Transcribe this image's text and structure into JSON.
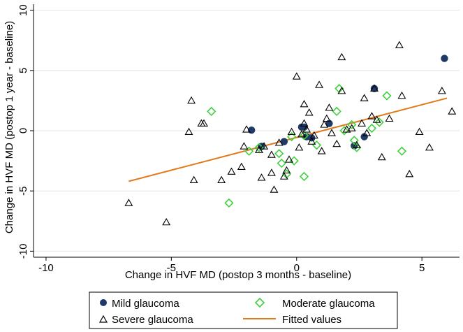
{
  "chart_data": {
    "type": "scatter",
    "xlabel": "Change in HVF MD (postop 3 months - baseline)",
    "ylabel": "Change in HVF MD (postop 1 year - baseline)",
    "xlim": [
      -10.5,
      6.5
    ],
    "ylim": [
      -10.5,
      10.5
    ],
    "xticks": [
      -10,
      -5,
      0,
      5
    ],
    "xtick_labels": [
      "-10",
      "-5",
      "0",
      "5"
    ],
    "yticks": [
      -10,
      -5,
      0,
      5,
      10
    ],
    "ytick_labels": [
      "-10",
      "-5",
      "0",
      "5",
      "10"
    ],
    "grid": "horizontal",
    "legend_placement": "bottom",
    "series": [
      {
        "name": "Mild glaucoma",
        "marker": "filled-circle",
        "color": "#1f3a66",
        "points": [
          [
            -1.8,
            0.05
          ],
          [
            -1.4,
            -1.3
          ],
          [
            -0.5,
            -0.9
          ],
          [
            0.2,
            0.3
          ],
          [
            0.3,
            0.3
          ],
          [
            0.4,
            -0.5
          ],
          [
            0.6,
            -0.6
          ],
          [
            1.3,
            0.6
          ],
          [
            2.3,
            -1.25
          ],
          [
            2.7,
            -0.5
          ],
          [
            3.1,
            3.5
          ],
          [
            5.9,
            6.0
          ]
        ]
      },
      {
        "name": "Moderate glaucoma",
        "marker": "hollow-diamond",
        "color": "#40d040",
        "points": [
          [
            -3.4,
            1.6
          ],
          [
            -2.7,
            -6.0
          ],
          [
            -1.9,
            -1.7
          ],
          [
            -1.5,
            -1.4
          ],
          [
            -0.7,
            -1.9
          ],
          [
            -0.6,
            -2.7
          ],
          [
            -0.4,
            -3.6
          ],
          [
            0.3,
            -3.8
          ],
          [
            -0.2,
            -0.5
          ],
          [
            -0.1,
            -2.5
          ],
          [
            0.3,
            -0.4
          ],
          [
            0.8,
            -1.2
          ],
          [
            1.6,
            1.6
          ],
          [
            1.7,
            3.5
          ],
          [
            1.9,
            0.0
          ],
          [
            2.2,
            0.5
          ],
          [
            2.3,
            -0.8
          ],
          [
            2.4,
            -1.4
          ],
          [
            3.0,
            0.2
          ],
          [
            3.3,
            0.7
          ],
          [
            3.6,
            2.9
          ],
          [
            4.2,
            -1.7
          ]
        ]
      },
      {
        "name": "Severe glaucoma",
        "marker": "hollow-triangle",
        "color": "#000000",
        "points": [
          [
            -6.7,
            -6.0
          ],
          [
            -5.2,
            -7.6
          ],
          [
            -4.3,
            -0.1
          ],
          [
            -4.2,
            2.5
          ],
          [
            -4.1,
            -4.1
          ],
          [
            -3.8,
            0.6
          ],
          [
            -3.7,
            0.6
          ],
          [
            -3.0,
            -4.1
          ],
          [
            -2.6,
            -3.4
          ],
          [
            -2.2,
            -3.0
          ],
          [
            -2.1,
            -1.3
          ],
          [
            -2.0,
            0.1
          ],
          [
            -1.5,
            -1.6
          ],
          [
            -1.4,
            -3.9
          ],
          [
            -1.3,
            -1.3
          ],
          [
            -1.0,
            -3.5
          ],
          [
            -1.0,
            -2.0
          ],
          [
            -0.9,
            -4.9
          ],
          [
            -0.7,
            -1.0
          ],
          [
            -0.5,
            -3.8
          ],
          [
            -0.4,
            -3.3
          ],
          [
            -0.3,
            -2.4
          ],
          [
            -0.2,
            -0.1
          ],
          [
            0.0,
            4.5
          ],
          [
            0.1,
            -1.4
          ],
          [
            0.2,
            -0.3
          ],
          [
            0.3,
            0.6
          ],
          [
            0.3,
            2.2
          ],
          [
            0.4,
            0.1
          ],
          [
            0.5,
            1.5
          ],
          [
            0.6,
            -0.9
          ],
          [
            0.7,
            -0.4
          ],
          [
            0.9,
            3.8
          ],
          [
            1.0,
            -1.7
          ],
          [
            1.1,
            0.5
          ],
          [
            1.2,
            1.0
          ],
          [
            1.3,
            1.9
          ],
          [
            1.4,
            -0.2
          ],
          [
            1.6,
            -1.1
          ],
          [
            1.8,
            6.1
          ],
          [
            1.8,
            3.3
          ],
          [
            2.0,
            0.1
          ],
          [
            2.2,
            0.2
          ],
          [
            2.4,
            -1.2
          ],
          [
            2.6,
            0.6
          ],
          [
            2.7,
            2.7
          ],
          [
            2.8,
            -0.2
          ],
          [
            3.0,
            1.2
          ],
          [
            3.1,
            3.5
          ],
          [
            3.2,
            0.9
          ],
          [
            3.4,
            -2.2
          ],
          [
            3.7,
            1.0
          ],
          [
            4.1,
            7.1
          ],
          [
            4.2,
            2.9
          ],
          [
            4.5,
            -3.6
          ],
          [
            4.9,
            -0.1
          ],
          [
            5.3,
            -1.4
          ],
          [
            5.8,
            3.3
          ],
          [
            6.2,
            1.6
          ]
        ]
      },
      {
        "name": "Fitted values",
        "type": "line",
        "color": "#e07b1c",
        "points": [
          [
            -6.7,
            -4.2
          ],
          [
            6.0,
            2.7
          ]
        ]
      }
    ]
  },
  "legend": {
    "mild": "Mild glaucoma",
    "moderate": "Moderate glaucoma",
    "severe": "Severe glaucoma",
    "fitted": "Fitted values"
  }
}
